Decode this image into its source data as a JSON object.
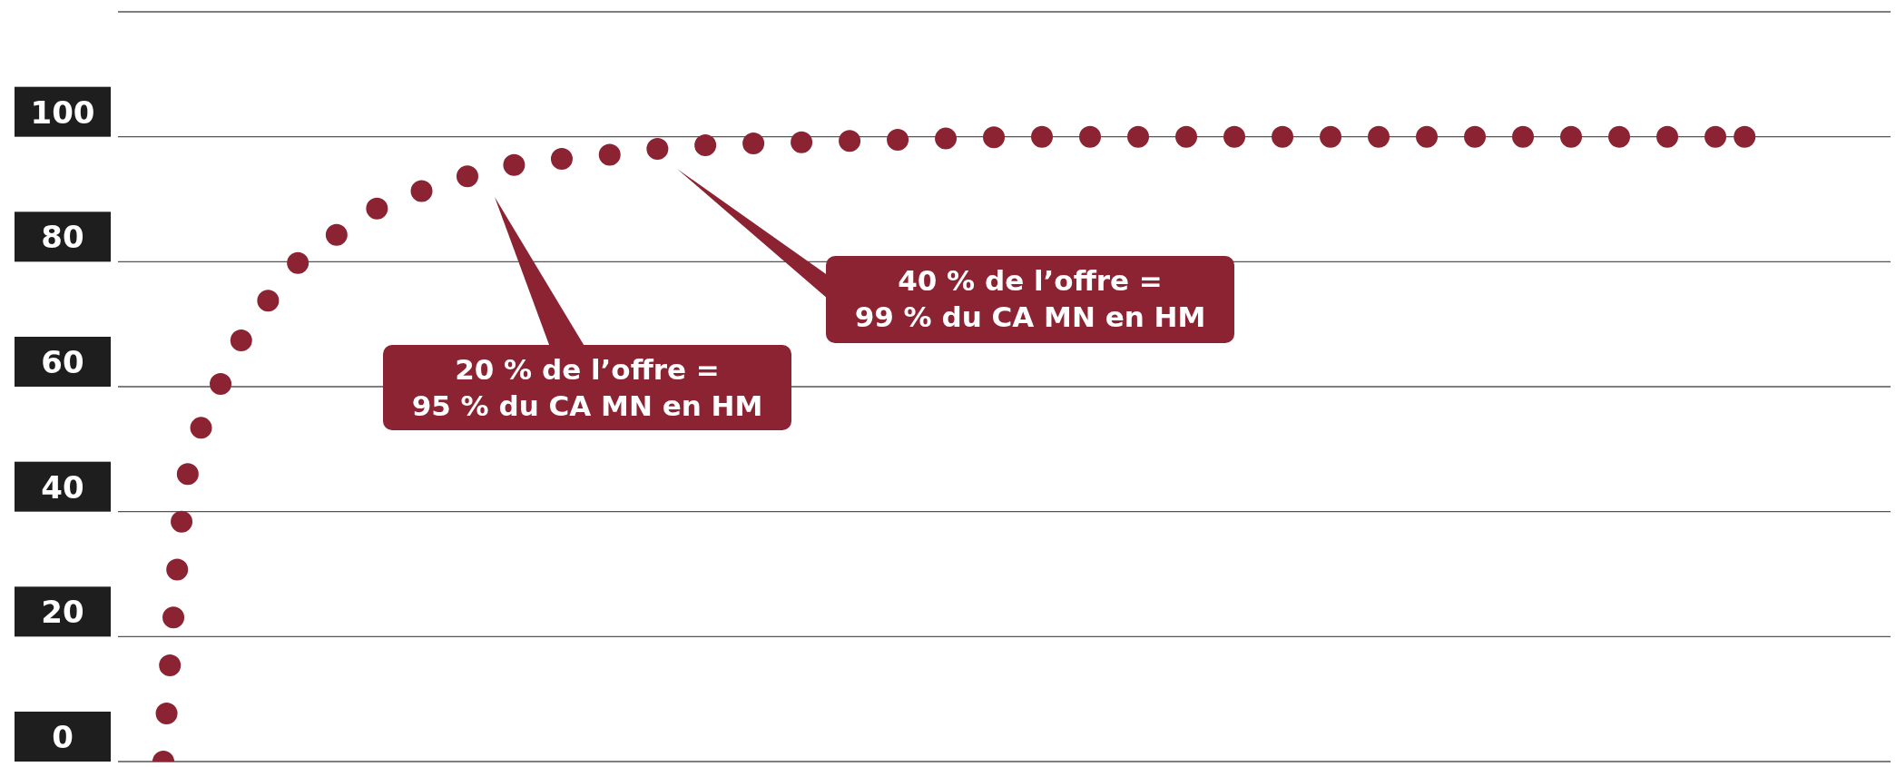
{
  "chart_data": {
    "type": "line",
    "line_style": "dotted",
    "marker": "none",
    "grid": "y",
    "tick_labels": "y",
    "categories": [
      null,
      null,
      null,
      null,
      null,
      null,
      null,
      null,
      null,
      null,
      null,
      null,
      null,
      null,
      null,
      null,
      null,
      null,
      null,
      null,
      null,
      null,
      null,
      null,
      null,
      null,
      null,
      null,
      null,
      null,
      null,
      null,
      null,
      null,
      null,
      null,
      null,
      null,
      null,
      null,
      null,
      null,
      null,
      null,
      null,
      null,
      null,
      null,
      null,
      null,
      null,
      null,
      null,
      null,
      null,
      null,
      null,
      null,
      null,
      null,
      null,
      null,
      null,
      null,
      null,
      null,
      null,
      null,
      null,
      null,
      null,
      null
    ],
    "series": [
      {
        "color": "#8b2332",
        "values": [
          0,
          46,
          57,
          66,
          72,
          77.5,
          81.5,
          84,
          86.5,
          89,
          90.5,
          91.8,
          93,
          94.3,
          95.2,
          95.8,
          96.3,
          96.7,
          97,
          97.4,
          97.9,
          98.4,
          98.6,
          98.8,
          98.9,
          99,
          99.1,
          99.2,
          99.3,
          99.4,
          99.5,
          99.6,
          99.7,
          99.8,
          99.9,
          100,
          100,
          100,
          100,
          100,
          100,
          100,
          100,
          100,
          100,
          100,
          100,
          100,
          100,
          100,
          100,
          100,
          100,
          100,
          100,
          100,
          100,
          100,
          100,
          100,
          100,
          100,
          100,
          100,
          100,
          100,
          null,
          null,
          null,
          null,
          null,
          null
        ]
      }
    ],
    "ylim": [
      0,
      120
    ],
    "yticks": [
      0,
      20,
      40,
      60,
      80,
      100,
      {
        "value": 120,
        "label": null
      }
    ],
    "annotations": [
      "20 % de l’offre =\n95 % du CA MN en HM",
      "40 % de l’offre =\n99 % du CA MN en HM"
    ]
  }
}
